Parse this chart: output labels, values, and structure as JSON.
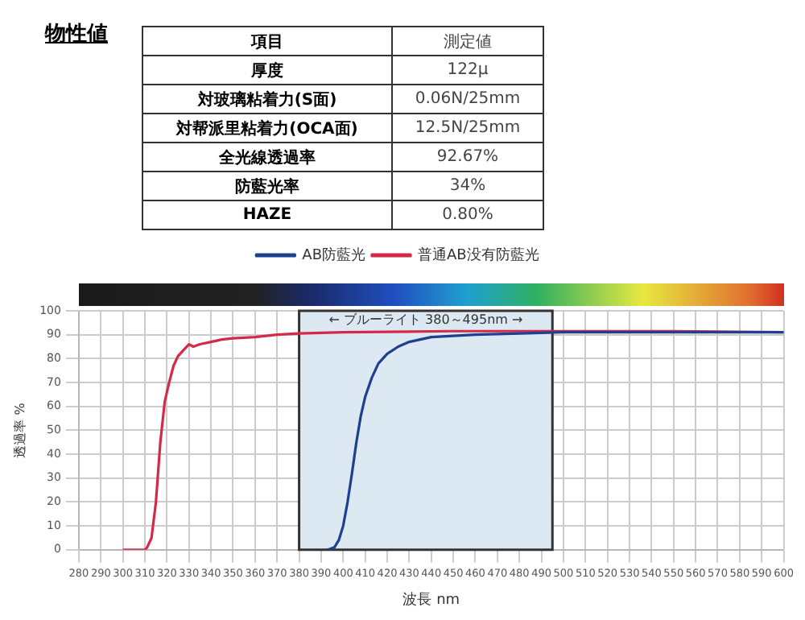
{
  "chart_data": [
    {
      "type": "other",
      "title": "物性値",
      "categories": [
        "項目",
        "厚度",
        "対玻璃粘着力(S面)",
        "対帮派里粘着力(OCA面)",
        "全光線透過率",
        "防藍光率",
        "HAZE"
      ],
      "value_labels": [
        "測定値",
        "122μ",
        "0.06N/25mm",
        "12.5N/25mm",
        "92.67%",
        "34%",
        "0.80%"
      ]
    },
    {
      "type": "line",
      "xlabel": "波長 nm",
      "ylabel": "透過率 %",
      "xlim": [
        280,
        600
      ],
      "xticks": [
        280,
        290,
        300,
        310,
        320,
        330,
        340,
        350,
        360,
        370,
        380,
        390,
        400,
        410,
        420,
        430,
        440,
        450,
        460,
        470,
        480,
        490,
        500,
        510,
        520,
        530,
        540,
        550,
        560,
        570,
        580,
        590,
        600
      ],
      "ylim": [
        0,
        100
      ],
      "yticks": [
        0,
        10,
        20,
        30,
        40,
        50,
        60,
        70,
        80,
        90,
        100
      ],
      "grid": true,
      "legend": "top",
      "marker": "none",
      "bands": [
        {
          "axis": "x",
          "from": 380,
          "to": 495,
          "label": "← ブルーライト 380～495nm →",
          "color": "#dce8f2"
        }
      ],
      "series": [
        {
          "name": "普通AB没有防藍光",
          "color": "#d42a4a",
          "x": [
            300,
            310,
            311,
            313,
            315,
            317,
            319,
            321,
            323,
            325,
            327,
            330,
            332,
            335,
            340,
            345,
            350,
            360,
            370,
            380,
            400,
            450,
            500,
            550,
            600
          ],
          "values": [
            0,
            0,
            1,
            5,
            20,
            45,
            62,
            70,
            77,
            81,
            83,
            86,
            85,
            86,
            87,
            88,
            88.5,
            89,
            90,
            90.5,
            91,
            91.5,
            91.5,
            91.5,
            91
          ]
        },
        {
          "name": "AB防藍光",
          "color": "#1f3f8f",
          "x": [
            393,
            396,
            398,
            400,
            402,
            404,
            406,
            408,
            410,
            413,
            416,
            420,
            425,
            430,
            440,
            450,
            460,
            480,
            500,
            550,
            600
          ],
          "values": [
            0,
            1,
            4,
            10,
            20,
            32,
            45,
            56,
            64,
            72,
            78,
            82,
            85,
            87,
            89,
            89.5,
            90,
            90.5,
            91,
            91,
            91
          ]
        }
      ]
    }
  ]
}
